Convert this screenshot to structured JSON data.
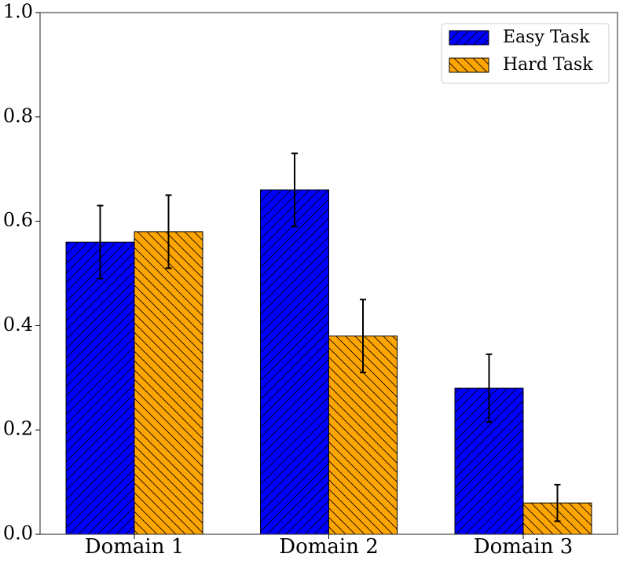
{
  "chart_data": {
    "type": "bar",
    "categories": [
      "Domain 1",
      "Domain 2",
      "Domain 3"
    ],
    "series": [
      {
        "name": "Easy Task",
        "color": "#0000ff",
        "hatch": "/",
        "values": [
          0.56,
          0.66,
          0.28
        ],
        "errors": [
          0.07,
          0.07,
          0.065
        ]
      },
      {
        "name": "Hard Task",
        "color": "#ffa500",
        "hatch": "\\",
        "values": [
          0.58,
          0.38,
          0.06
        ],
        "errors": [
          0.07,
          0.07,
          0.035
        ]
      }
    ],
    "ylim": [
      0,
      1
    ],
    "yticks": [
      {
        "value": 0,
        "label": "0.0"
      },
      0.2,
      0.4,
      0.6,
      0.8,
      {
        "value": 1,
        "label": "1.0"
      }
    ],
    "legend": "upper right"
  }
}
